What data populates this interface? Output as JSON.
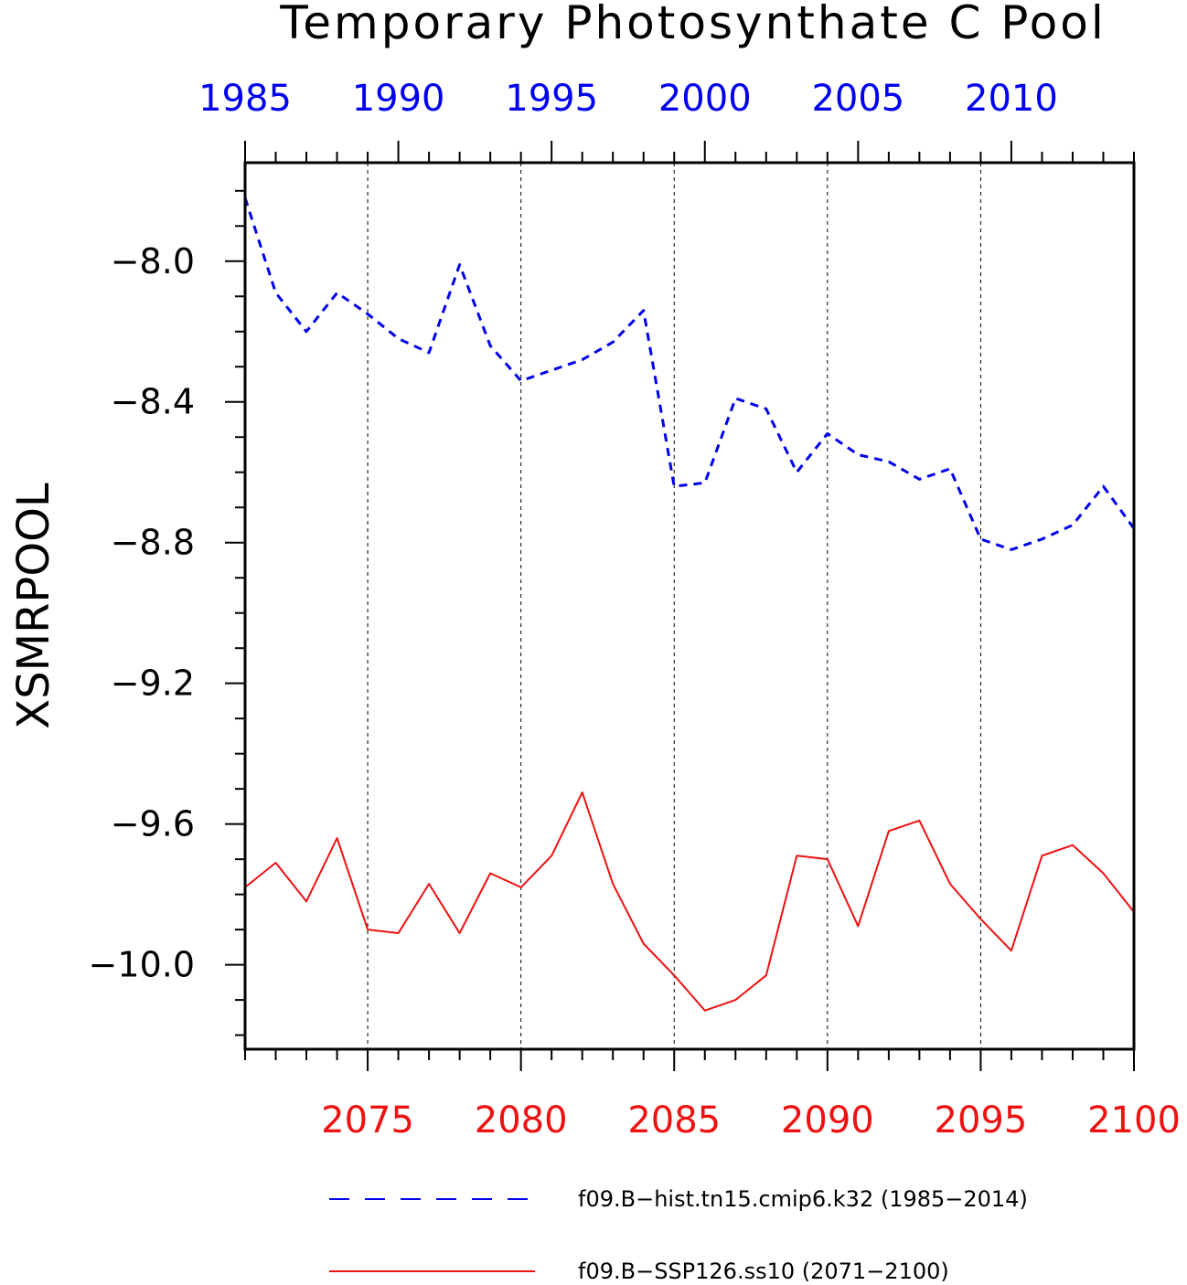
{
  "chart_data": {
    "type": "line",
    "title": "Temporary Photosynthate C Pool",
    "ylabel": "XSMRPOOL",
    "ylim": [
      -10.24,
      -7.72
    ],
    "yticks": [
      -8.0,
      -8.4,
      -8.8,
      -9.2,
      -9.6,
      -10.0
    ],
    "ytick_labels": [
      "−8.0",
      "−8.4",
      "−8.8",
      "−9.2",
      "−9.6",
      "−10.0"
    ],
    "grid": "vertical dashed lines at major x ticks",
    "legend_placement": "below",
    "x_top": {
      "range": [
        1985,
        2014
      ],
      "ticks": [
        1985,
        1990,
        1995,
        2000,
        2005,
        2010
      ],
      "tick_labels": [
        "1985",
        "1990",
        "1995",
        "2000",
        "2005",
        "2010"
      ],
      "color": "#0000ee"
    },
    "x_bottom": {
      "range": [
        2071,
        2100
      ],
      "ticks": [
        2075,
        2080,
        2085,
        2090,
        2095,
        2100
      ],
      "tick_labels": [
        "2075",
        "2080",
        "2085",
        "2090",
        "2095",
        "2100"
      ],
      "color": "#ee1111"
    },
    "series": [
      {
        "name": "f09.B−hist.tn15.cmip6.k32 (1985−2014)",
        "axis": "top",
        "color": "#0000ee",
        "style": "dashed",
        "x": [
          1985,
          1986,
          1987,
          1988,
          1989,
          1990,
          1991,
          1992,
          1993,
          1994,
          1995,
          1996,
          1997,
          1998,
          1999,
          2000,
          2001,
          2002,
          2003,
          2004,
          2005,
          2006,
          2007,
          2008,
          2009,
          2010,
          2011,
          2012,
          2013,
          2014
        ],
        "values": [
          -7.82,
          -8.09,
          -8.2,
          -8.09,
          -8.15,
          -8.22,
          -8.26,
          -8.01,
          -8.24,
          -8.34,
          -8.31,
          -8.28,
          -8.23,
          -8.14,
          -8.64,
          -8.63,
          -8.39,
          -8.42,
          -8.6,
          -8.49,
          -8.55,
          -8.57,
          -8.62,
          -8.59,
          -8.79,
          -8.82,
          -8.79,
          -8.75,
          -8.64,
          -8.76
        ]
      },
      {
        "name": "f09.B−SSP126.ss10 (2071−2100)",
        "axis": "bottom",
        "color": "#ee1111",
        "style": "solid",
        "x": [
          2071,
          2072,
          2073,
          2074,
          2075,
          2076,
          2077,
          2078,
          2079,
          2080,
          2081,
          2082,
          2083,
          2084,
          2085,
          2086,
          2087,
          2088,
          2089,
          2090,
          2091,
          2092,
          2093,
          2094,
          2095,
          2096,
          2097,
          2098,
          2099,
          2100
        ],
        "values": [
          -9.78,
          -9.71,
          -9.82,
          -9.64,
          -9.9,
          -9.91,
          -9.77,
          -9.91,
          -9.74,
          -9.78,
          -9.69,
          -9.51,
          -9.77,
          -9.94,
          -10.03,
          -10.13,
          -10.1,
          -10.03,
          -9.69,
          -9.7,
          -9.89,
          -9.62,
          -9.59,
          -9.77,
          -9.87,
          -9.96,
          -9.69,
          -9.66,
          -9.74,
          -9.85
        ]
      }
    ]
  }
}
